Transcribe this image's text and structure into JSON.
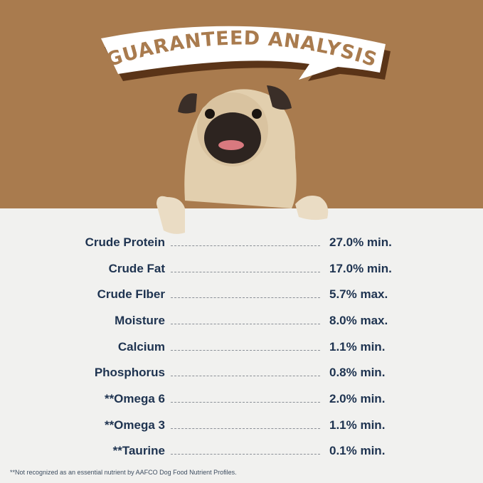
{
  "title": "GUARANTEED ANALYSIS",
  "colors": {
    "background_top": "#a97b4e",
    "background_bottom": "#f1f1ef",
    "text": "#1e3350",
    "banner": "#ffffff",
    "banner_shadow": "#5a3418"
  },
  "rows": [
    {
      "label": "Crude Protein",
      "value": "27.0% min."
    },
    {
      "label": "Crude Fat",
      "value": "17.0% min."
    },
    {
      "label": "Crude FIber",
      "value": "5.7% max."
    },
    {
      "label": "Moisture",
      "value": "8.0% max."
    },
    {
      "label": "Calcium",
      "value": "1.1% min."
    },
    {
      "label": "Phosphorus",
      "value": "0.8% min."
    },
    {
      "label": "**Omega 6",
      "value": "2.0% min."
    },
    {
      "label": "**Omega 3",
      "value": "1.1% min."
    },
    {
      "label": "**Taurine",
      "value": "0.1% min."
    }
  ],
  "footnote": "**Not recognized as an essential nutrient by AAFCO Dog Food Nutrient Profiles."
}
